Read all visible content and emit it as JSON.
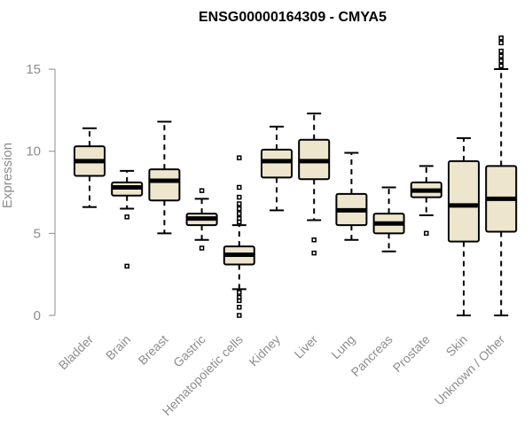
{
  "chart_data": {
    "type": "boxplot",
    "title": "ENSG00000164309 - CMYA5",
    "xlabel": "",
    "ylabel": "Expression",
    "ylim": [
      0,
      15
    ],
    "yticks": [
      0,
      5,
      10,
      15
    ],
    "grid": false,
    "box_color": "#ede6cd",
    "categories": [
      "Bladder",
      "Brain",
      "Breast",
      "Gastric",
      "Hematopoietic cells",
      "Kidney",
      "Liver",
      "Lung",
      "Pancreas",
      "Prostate",
      "Skin",
      "Unknown / Other"
    ],
    "series": [
      {
        "name": "Bladder",
        "min": 6.6,
        "q1": 8.5,
        "median": 9.4,
        "q3": 10.3,
        "max": 11.4,
        "outliers": []
      },
      {
        "name": "Brain",
        "min": 6.5,
        "q1": 7.3,
        "median": 7.8,
        "q3": 8.1,
        "max": 8.8,
        "outliers": [
          6.0,
          3.0
        ]
      },
      {
        "name": "Breast",
        "min": 5.0,
        "q1": 7.0,
        "median": 8.2,
        "q3": 8.9,
        "max": 11.8,
        "outliers": []
      },
      {
        "name": "Gastric",
        "min": 4.6,
        "q1": 5.5,
        "median": 5.9,
        "q3": 6.2,
        "max": 7.1,
        "outliers": [
          7.6,
          4.1
        ]
      },
      {
        "name": "Hematopoietic cells",
        "min": 1.6,
        "q1": 3.1,
        "median": 3.7,
        "q3": 4.2,
        "max": 5.5,
        "outliers": [
          9.6,
          7.8,
          7.2,
          6.8,
          6.5,
          6.2,
          5.9,
          5.7,
          1.4,
          1.1,
          0.9,
          0.5,
          0.0
        ]
      },
      {
        "name": "Kidney",
        "min": 6.4,
        "q1": 8.4,
        "median": 9.4,
        "q3": 10.1,
        "max": 11.5,
        "outliers": []
      },
      {
        "name": "Liver",
        "min": 5.8,
        "q1": 8.3,
        "median": 9.4,
        "q3": 10.7,
        "max": 12.3,
        "outliers": [
          4.6,
          3.8
        ]
      },
      {
        "name": "Lung",
        "min": 4.6,
        "q1": 5.5,
        "median": 6.4,
        "q3": 7.4,
        "max": 9.9,
        "outliers": []
      },
      {
        "name": "Pancreas",
        "min": 3.9,
        "q1": 5.0,
        "median": 5.6,
        "q3": 6.2,
        "max": 7.8,
        "outliers": []
      },
      {
        "name": "Prostate",
        "min": 6.1,
        "q1": 7.2,
        "median": 7.6,
        "q3": 8.1,
        "max": 9.1,
        "outliers": [
          5.0
        ]
      },
      {
        "name": "Skin",
        "min": 0.0,
        "q1": 4.5,
        "median": 6.7,
        "q3": 9.4,
        "max": 10.8,
        "outliers": []
      },
      {
        "name": "Unknown / Other",
        "min": 0.0,
        "q1": 5.1,
        "median": 7.1,
        "q3": 9.1,
        "max": 15.0,
        "outliers": [
          15.2,
          15.5,
          15.8,
          16.1,
          16.6,
          16.9
        ]
      }
    ]
  }
}
